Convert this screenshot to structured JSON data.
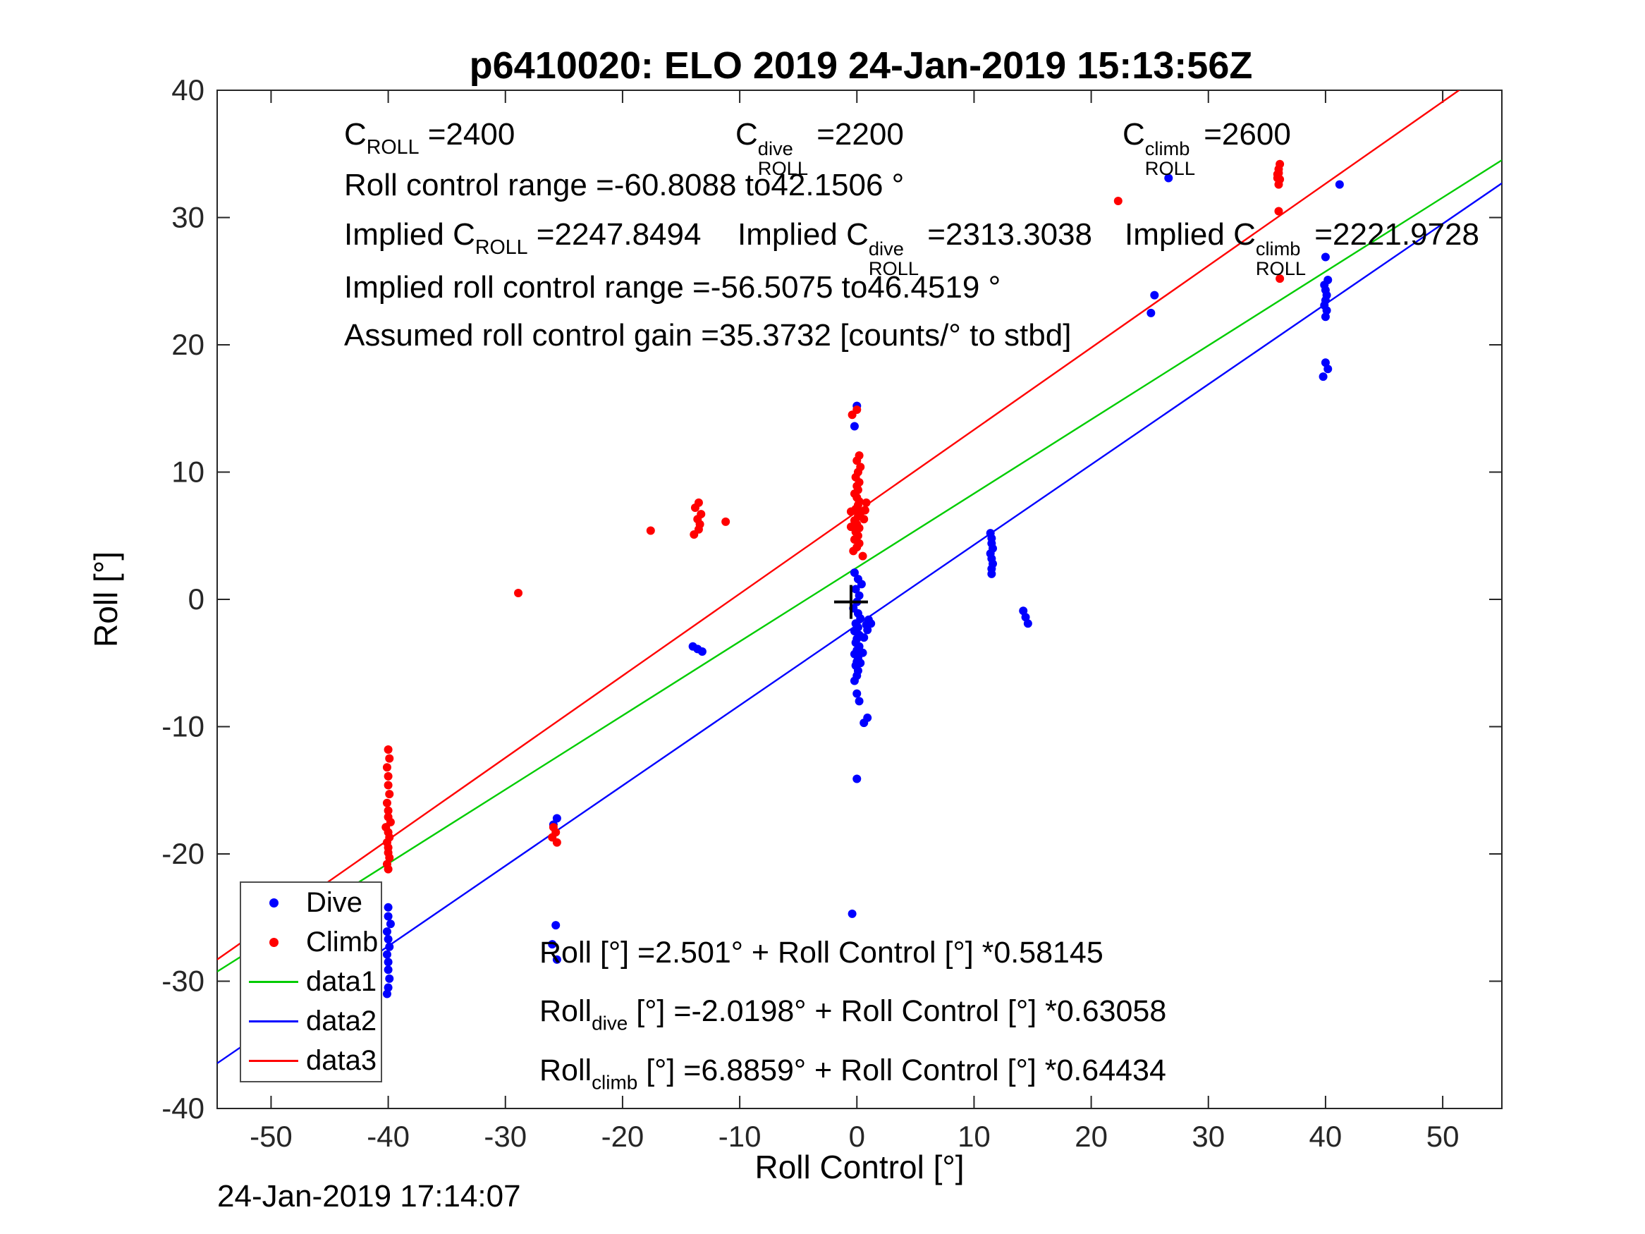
{
  "title": "p6410020: ELO 2019 24-Jan-2019 15:13:56Z",
  "timestamp": "24-Jan-2019 17:14:07",
  "axes": {
    "xlabel": "Roll Control [°]",
    "ylabel": "Roll [°]"
  },
  "annotations": {
    "c_roll": {
      "base": "C",
      "sub": "ROLL",
      "value": " =2400"
    },
    "c_dive": {
      "base": "C",
      "sup": "dive",
      "sub": "ROLL",
      "value": " =2200"
    },
    "c_climb": {
      "base": "C",
      "sup": "climb",
      "sub": "ROLL",
      "value": " =2600"
    },
    "roll_range": "Roll control range =-60.8088 to42.1506 °",
    "implied_c": {
      "pre": "Implied C",
      "sub": "ROLL",
      "value": " =2247.8494"
    },
    "implied_c_dive": {
      "pre": "Implied C",
      "sup": "dive",
      "sub": "ROLL",
      "value": " =2313.3038"
    },
    "implied_c_climb": {
      "pre": "Implied C",
      "sup": "climb",
      "sub": "ROLL",
      "value": " =2221.9728"
    },
    "implied_range": "Implied roll control range =-56.5075 to46.4519 °",
    "gain": "Assumed roll control gain =35.3732 [counts/° to stbd]",
    "eq1": "Roll [°] =2.501° + Roll Control [°] *0.58145",
    "eq2": {
      "pre": "Roll",
      "sub": "dive",
      "post": " [°] =-2.0198° + Roll Control [°] *0.63058"
    },
    "eq3": {
      "pre": "Roll",
      "sub": "climb",
      "post": " [°] =6.8859° + Roll Control [°] *0.64434"
    }
  },
  "legend": {
    "items": [
      {
        "label": "Dive",
        "marker": "dot",
        "color": "#0000ff"
      },
      {
        "label": "Climb",
        "marker": "dot",
        "color": "#ff0000"
      },
      {
        "label": "data1",
        "marker": "line",
        "color": "#00cc00"
      },
      {
        "label": "data2",
        "marker": "line",
        "color": "#0000ff"
      },
      {
        "label": "data3",
        "marker": "line",
        "color": "#ff0000"
      }
    ]
  },
  "chart_data": {
    "type": "scatter",
    "title": "p6410020: ELO 2019 24-Jan-2019 15:13:56Z",
    "xlabel": "Roll Control [°]",
    "ylabel": "Roll [°]",
    "xlim": [
      -54.6,
      55.05
    ],
    "ylim": [
      -40,
      40
    ],
    "xticks": [
      -50,
      -40,
      -30,
      -20,
      -10,
      0,
      10,
      20,
      30,
      40,
      50
    ],
    "yticks": [
      -40,
      -30,
      -20,
      -10,
      0,
      10,
      20,
      30,
      40
    ],
    "grid": false,
    "legend_position": "lower-left",
    "series": [
      {
        "name": "Dive",
        "type": "scatter",
        "color": "#0000ff",
        "points": [
          [
            -0.2,
            2.1
          ],
          [
            0.1,
            1.6
          ],
          [
            0.4,
            1.2
          ],
          [
            -0.1,
            0.8
          ],
          [
            0.2,
            0.3
          ],
          [
            0,
            -0.2
          ],
          [
            -0.3,
            -0.7
          ],
          [
            0.1,
            -1.1
          ],
          [
            0.3,
            -1.5
          ],
          [
            -0.1,
            -1.9
          ],
          [
            0.1,
            -2.2
          ],
          [
            -0.2,
            -2.5
          ],
          [
            0.2,
            -2.8
          ],
          [
            0,
            -3.1
          ],
          [
            -0.1,
            -3.4
          ],
          [
            0.2,
            -3.7
          ],
          [
            0,
            -4
          ],
          [
            -0.2,
            -4.3
          ],
          [
            0.1,
            -4.6
          ],
          [
            0,
            -4.9
          ],
          [
            -0.1,
            -5.2
          ],
          [
            0.1,
            -5.6
          ],
          [
            0,
            -6
          ],
          [
            -0.2,
            -6.4
          ],
          [
            0.3,
            -5
          ],
          [
            0.5,
            -4.2
          ],
          [
            0.6,
            -3
          ],
          [
            0.8,
            -2
          ],
          [
            1,
            -1.6
          ],
          [
            1.2,
            -1.9
          ],
          [
            0.9,
            -2.4
          ],
          [
            0,
            -7.4
          ],
          [
            0.2,
            -8
          ],
          [
            0.9,
            -9.3
          ],
          [
            0.6,
            -9.7
          ],
          [
            0,
            -14.1
          ],
          [
            -0.4,
            -24.7
          ],
          [
            0,
            15.2
          ],
          [
            -0.2,
            13.6
          ],
          [
            11.4,
            5.2
          ],
          [
            11.5,
            4.8
          ],
          [
            11.5,
            4.4
          ],
          [
            11.6,
            4
          ],
          [
            11.4,
            3.6
          ],
          [
            11.5,
            3.2
          ],
          [
            11.6,
            2.8
          ],
          [
            11.5,
            2.4
          ],
          [
            11.5,
            2
          ],
          [
            14.2,
            -0.9
          ],
          [
            14.4,
            -1.4
          ],
          [
            14.6,
            -1.9
          ],
          [
            -14,
            -3.7
          ],
          [
            -13.6,
            -3.9
          ],
          [
            -13.2,
            -4.1
          ],
          [
            -25.6,
            -17.2
          ],
          [
            -25.9,
            -17.7
          ],
          [
            -25.7,
            -25.6
          ],
          [
            -26,
            -27.1
          ],
          [
            -25.6,
            -28.3
          ],
          [
            -40,
            -24.2
          ],
          [
            -40,
            -24.9
          ],
          [
            -39.8,
            -25.5
          ],
          [
            -40.1,
            -26.1
          ],
          [
            -40,
            -26.7
          ],
          [
            -39.9,
            -27.3
          ],
          [
            -40.1,
            -27.9
          ],
          [
            -40,
            -28.5
          ],
          [
            -40,
            -29.1
          ],
          [
            -39.9,
            -29.8
          ],
          [
            -40,
            -30.5
          ],
          [
            -40.1,
            -31
          ],
          [
            40,
            22.2
          ],
          [
            40.1,
            22.7
          ],
          [
            39.9,
            23.1
          ],
          [
            40,
            23.5
          ],
          [
            40.1,
            23.9
          ],
          [
            40,
            24.3
          ],
          [
            39.9,
            24.7
          ],
          [
            40.2,
            25.1
          ],
          [
            40,
            26.9
          ],
          [
            40,
            18.6
          ],
          [
            40.2,
            18.1
          ],
          [
            39.8,
            17.5
          ],
          [
            25.1,
            22.5
          ],
          [
            25.4,
            23.9
          ],
          [
            26.6,
            33.1
          ],
          [
            41.2,
            32.6
          ]
        ]
      },
      {
        "name": "Climb",
        "type": "scatter",
        "color": "#ff0000",
        "points": [
          [
            0,
            4.1
          ],
          [
            0.2,
            4.4
          ],
          [
            -0.2,
            4.7
          ],
          [
            0.1,
            5
          ],
          [
            -0.1,
            5.3
          ],
          [
            0.2,
            5.6
          ],
          [
            0,
            5.9
          ],
          [
            -0.2,
            6.2
          ],
          [
            0.1,
            6.5
          ],
          [
            0.3,
            6.8
          ],
          [
            -0.1,
            7.1
          ],
          [
            0.1,
            7.4
          ],
          [
            0.2,
            7.7
          ],
          [
            0,
            8
          ],
          [
            -0.2,
            8.3
          ],
          [
            0.1,
            8.6
          ],
          [
            0,
            8.9
          ],
          [
            0.2,
            9.2
          ],
          [
            -0.1,
            9.6
          ],
          [
            0.1,
            10
          ],
          [
            0.3,
            10.4
          ],
          [
            0,
            10.9
          ],
          [
            0.2,
            11.3
          ],
          [
            -0.4,
            14.5
          ],
          [
            0,
            14.9
          ],
          [
            0.5,
            3.4
          ],
          [
            -0.3,
            3.8
          ],
          [
            0.6,
            6.3
          ],
          [
            0.7,
            7
          ],
          [
            0.8,
            7.6
          ],
          [
            -0.5,
            5.7
          ],
          [
            -0.5,
            6.9
          ],
          [
            -40,
            -11.8
          ],
          [
            -39.9,
            -12.5
          ],
          [
            -40.1,
            -13.2
          ],
          [
            -40,
            -13.9
          ],
          [
            -40,
            -14.6
          ],
          [
            -39.9,
            -15.3
          ],
          [
            -40.1,
            -16
          ],
          [
            -40,
            -16.6
          ],
          [
            -40,
            -17.1
          ],
          [
            -39.8,
            -17.5
          ],
          [
            -40.2,
            -17.9
          ],
          [
            -40,
            -18.3
          ],
          [
            -39.9,
            -18.7
          ],
          [
            -40.1,
            -19.1
          ],
          [
            -40,
            -19.5
          ],
          [
            -40,
            -19.9
          ],
          [
            -39.9,
            -20.3
          ],
          [
            -40.1,
            -20.8
          ],
          [
            -40,
            -21.2
          ],
          [
            -25.9,
            -17.9
          ],
          [
            -25.7,
            -18.3
          ],
          [
            -26,
            -18.7
          ],
          [
            -25.6,
            -19.1
          ],
          [
            -13.9,
            5.1
          ],
          [
            -13.5,
            5.5
          ],
          [
            -13.4,
            5.9
          ],
          [
            -13.6,
            6.3
          ],
          [
            -13.3,
            6.7
          ],
          [
            -13.8,
            7.2
          ],
          [
            -13.5,
            7.6
          ],
          [
            -11.2,
            6.1
          ],
          [
            -17.6,
            5.4
          ],
          [
            -28.9,
            0.5
          ],
          [
            36,
            32.6
          ],
          [
            36.1,
            33
          ],
          [
            35.9,
            33.4
          ],
          [
            36,
            33.8
          ],
          [
            36.1,
            34.2
          ],
          [
            35.9,
            33.1
          ],
          [
            36,
            33.5
          ],
          [
            36,
            30.5
          ],
          [
            36.1,
            25.2
          ],
          [
            22.3,
            31.3
          ]
        ]
      },
      {
        "name": "data1",
        "type": "line",
        "color": "#00cc00",
        "intercept": 2.501,
        "slope": 0.58145
      },
      {
        "name": "data2",
        "type": "line",
        "color": "#0000ff",
        "intercept": -2.0198,
        "slope": 0.63058
      },
      {
        "name": "data3",
        "type": "line",
        "color": "#ff0000",
        "intercept": 6.8859,
        "slope": 0.64434
      }
    ],
    "origin_marker": {
      "x": -0.5,
      "y": -0.2,
      "type": "plus",
      "color": "#000000"
    }
  }
}
